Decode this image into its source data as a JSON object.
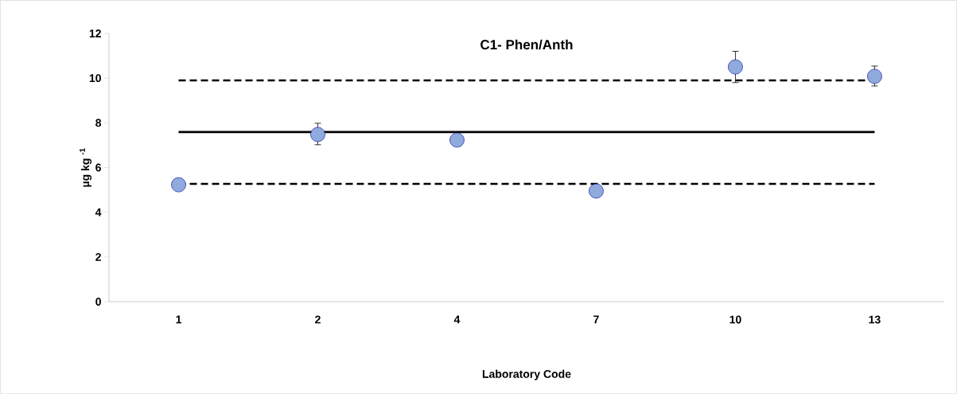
{
  "chart_data": {
    "type": "scatter",
    "title": "C1- Phen/Anth",
    "xlabel": "Laboratory Code",
    "ylabel": "µg kg $^{-1}$",
    "categories": [
      "1",
      "2",
      "4",
      "7",
      "10",
      "13"
    ],
    "series": [
      {
        "color": "#8faadc",
        "values": [
          5.23,
          7.48,
          7.23,
          4.95,
          10.5,
          10.08
        ],
        "errors": [
          null,
          [
            7.02,
            7.98
          ],
          null,
          null,
          [
            9.8,
            11.2
          ],
          [
            9.65,
            10.54
          ]
        ]
      }
    ],
    "ylim": [
      0,
      12
    ],
    "yticks": [
      0,
      2,
      4,
      6,
      8,
      10,
      12
    ],
    "ref_lines": [
      {
        "axis": "y",
        "value": 7.59,
        "color": "#000000",
        "line_style": "solid"
      },
      {
        "axis": "y",
        "value": 9.9,
        "color": "#000000",
        "line_style": "dashed"
      },
      {
        "axis": "y",
        "value": 5.27,
        "color": "#000000",
        "line_style": "dashed"
      }
    ],
    "grid": false
  }
}
